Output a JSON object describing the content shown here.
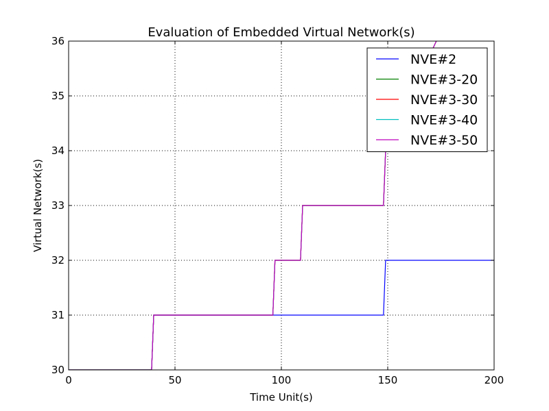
{
  "chart_data": {
    "type": "line",
    "title": "Evaluation of Embedded Virtual Network(s)",
    "xlabel": "Time Unit(s)",
    "ylabel": "Virtual Network(s)",
    "xlim": [
      0,
      200
    ],
    "ylim": [
      30,
      36
    ],
    "xticks": [
      "0",
      "50",
      "100",
      "150",
      "200"
    ],
    "yticks": [
      "30",
      "31",
      "32",
      "33",
      "34",
      "35",
      "36"
    ],
    "grid": true,
    "legend_position": "top-right",
    "series": [
      {
        "name": "NVE#2",
        "color": "#0000ff",
        "x": [
          0,
          39,
          40,
          148,
          149,
          200
        ],
        "y": [
          30,
          30,
          31,
          31,
          32,
          32
        ]
      },
      {
        "name": "NVE#3-20",
        "color": "#008000",
        "x": [
          0,
          39,
          40,
          96,
          97,
          109,
          110,
          148,
          149,
          180
        ],
        "y": [
          30,
          30,
          31,
          31,
          32,
          32,
          33,
          33,
          34,
          36.6
        ]
      },
      {
        "name": "NVE#3-30",
        "color": "#ff0000",
        "x": [
          0,
          39,
          40,
          96,
          97,
          109,
          110,
          148,
          149,
          180
        ],
        "y": [
          30,
          30,
          31,
          31,
          32,
          32,
          33,
          33,
          34,
          36.6
        ]
      },
      {
        "name": "NVE#3-40",
        "color": "#00bfbf",
        "x": [
          0,
          39,
          40,
          96,
          97,
          109,
          110,
          148,
          149,
          180
        ],
        "y": [
          30,
          30,
          31,
          31,
          32,
          32,
          33,
          33,
          34,
          36.6
        ]
      },
      {
        "name": "NVE#3-50",
        "color": "#bf00bf",
        "x": [
          0,
          39,
          40,
          96,
          97,
          109,
          110,
          148,
          149,
          180
        ],
        "y": [
          30,
          30,
          31,
          31,
          32,
          32,
          33,
          33,
          34,
          36.6
        ]
      }
    ]
  }
}
